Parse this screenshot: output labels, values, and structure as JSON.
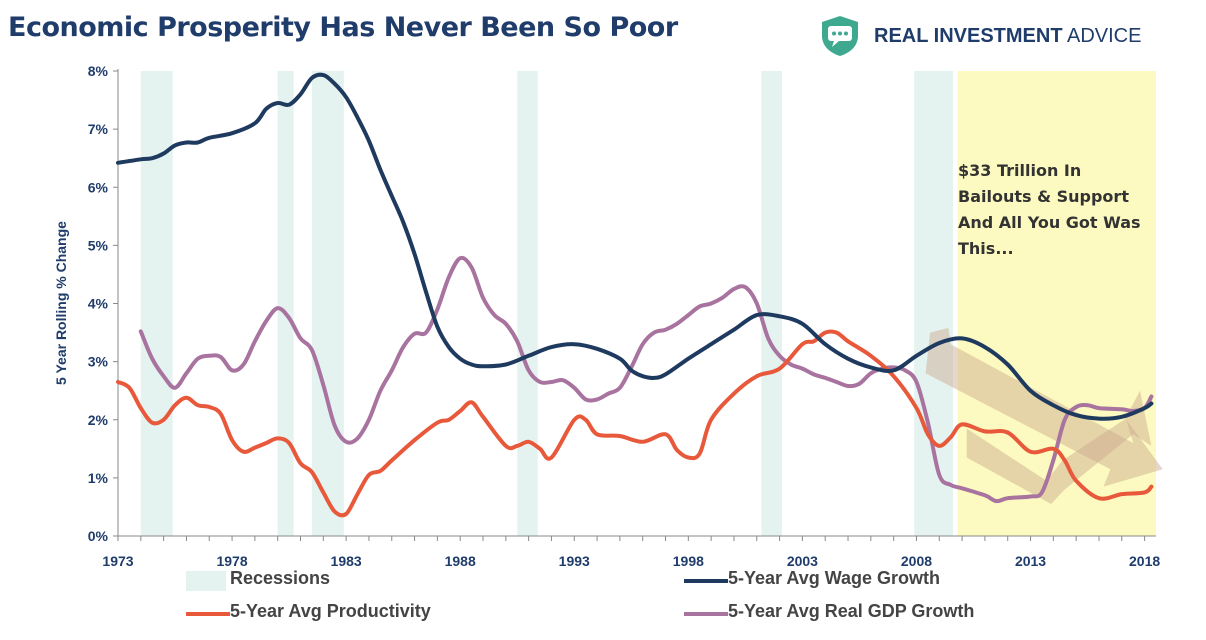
{
  "title": "Economic Prosperity Has Never Been So Poor",
  "brand": {
    "prefix": "REAL INVESTMENT",
    "suffix": "ADVICE",
    "logo_icon": "chat-bubble-shield-icon",
    "logo_color": "#3fa98f"
  },
  "annotation": {
    "lines": [
      "$33 Trillion In",
      "Bailouts & Support",
      "And All You Got Was",
      "This..."
    ]
  },
  "legend": {
    "recessions": "Recessions",
    "wage": "5-Year Avg Wage Growth",
    "productivity": "5-Year Avg Productivity",
    "gdp": "5-Year Avg Real GDP Growth"
  },
  "colors": {
    "wage": "#1f3a5f",
    "productivity": "#e8583a",
    "gdp": "#a8739f",
    "recession": "#e4f3f0",
    "highlight": "#fcfac0",
    "trend_arrow": "#c9a78c"
  },
  "chart_data": {
    "type": "line",
    "title": "Economic Prosperity Has Never Been So Poor",
    "xlabel": "",
    "ylabel": "5 Year Rolling % Change",
    "xlim": [
      1973,
      2018.5
    ],
    "ylim": [
      0,
      8
    ],
    "x_ticks": [
      1973,
      1978,
      1983,
      1988,
      1993,
      1998,
      2003,
      2008,
      2013,
      2018
    ],
    "x_tick_labels": [
      "1973",
      "1978",
      "1983",
      "1988",
      "1993",
      "1998",
      "2003",
      "2008",
      "2013",
      "2018"
    ],
    "y_ticks": [
      0,
      1,
      2,
      3,
      4,
      5,
      6,
      7,
      8
    ],
    "y_tick_labels": [
      "0%",
      "1%",
      "2%",
      "3%",
      "4%",
      "5%",
      "6%",
      "7%",
      "8%"
    ],
    "grid": false,
    "legend_position": "bottom",
    "recessions": [
      [
        1974.0,
        1975.4
      ],
      [
        1980.0,
        1980.7
      ],
      [
        1981.5,
        1982.9
      ],
      [
        1990.5,
        1991.4
      ],
      [
        2001.2,
        2002.1
      ],
      [
        2007.9,
        2009.6
      ]
    ],
    "highlight_range": [
      2009.8,
      2018.5
    ],
    "series": [
      {
        "name": "5-Year Avg Wage Growth",
        "x": [
          1973,
          1974,
          1974.5,
          1975,
          1975.5,
          1976,
          1976.5,
          1977,
          1978,
          1979,
          1979.5,
          1980,
          1980.5,
          1981,
          1981.5,
          1982,
          1982.5,
          1983,
          1983.5,
          1984,
          1984.5,
          1985,
          1985.5,
          1986,
          1986.5,
          1987,
          1987.5,
          1988,
          1988.5,
          1989,
          1990,
          1991,
          1992,
          1993,
          1994,
          1995,
          1995.5,
          1996,
          1996.5,
          1997,
          1998,
          1999,
          2000,
          2001,
          2002,
          2003,
          2004,
          2005,
          2006,
          2007,
          2008,
          2009,
          2010,
          2011,
          2012,
          2013,
          2014,
          2015,
          2016,
          2017,
          2018,
          2018.3
        ],
        "y": [
          6.42,
          6.48,
          6.5,
          6.58,
          6.72,
          6.77,
          6.77,
          6.85,
          6.93,
          7.1,
          7.35,
          7.45,
          7.42,
          7.6,
          7.88,
          7.93,
          7.78,
          7.55,
          7.2,
          6.8,
          6.3,
          5.85,
          5.4,
          4.85,
          4.2,
          3.6,
          3.25,
          3.05,
          2.95,
          2.92,
          2.95,
          3.1,
          3.25,
          3.3,
          3.22,
          3.05,
          2.85,
          2.75,
          2.72,
          2.78,
          3.05,
          3.3,
          3.55,
          3.8,
          3.78,
          3.65,
          3.3,
          3.05,
          2.9,
          2.85,
          3.1,
          3.32,
          3.4,
          3.25,
          2.95,
          2.5,
          2.25,
          2.08,
          2.02,
          2.05,
          2.2,
          2.28
        ]
      },
      {
        "name": "5-Year Avg Productivity",
        "x": [
          1973,
          1973.5,
          1974,
          1974.5,
          1975,
          1975.5,
          1976,
          1976.5,
          1977,
          1977.5,
          1978,
          1978.5,
          1979,
          1979.5,
          1980,
          1980.5,
          1981,
          1981.5,
          1982,
          1982.5,
          1983,
          1983.5,
          1984,
          1984.5,
          1985,
          1986,
          1987,
          1987.5,
          1988,
          1988.5,
          1989,
          1990,
          1990.5,
          1991,
          1991.5,
          1992,
          1993,
          1993.5,
          1994,
          1995,
          1996,
          1997,
          1997.5,
          1998,
          1998.5,
          1999,
          2000,
          2001,
          2002,
          2003,
          2003.5,
          2004,
          2004.5,
          2005,
          2006,
          2007,
          2008,
          2008.5,
          2009,
          2009.5,
          2010,
          2011,
          2012,
          2013,
          2014,
          2014.5,
          2015,
          2016,
          2017,
          2018,
          2018.3
        ],
        "y": [
          2.65,
          2.55,
          2.2,
          1.95,
          2.0,
          2.25,
          2.38,
          2.25,
          2.22,
          2.1,
          1.65,
          1.45,
          1.52,
          1.6,
          1.68,
          1.6,
          1.25,
          1.1,
          0.75,
          0.42,
          0.38,
          0.72,
          1.05,
          1.12,
          1.3,
          1.65,
          1.95,
          2.0,
          2.15,
          2.3,
          2.05,
          1.55,
          1.55,
          1.62,
          1.5,
          1.35,
          2.0,
          2.0,
          1.75,
          1.72,
          1.62,
          1.75,
          1.48,
          1.35,
          1.42,
          2.0,
          2.45,
          2.75,
          2.88,
          3.3,
          3.35,
          3.5,
          3.5,
          3.35,
          3.1,
          2.75,
          2.2,
          1.75,
          1.55,
          1.7,
          1.92,
          1.8,
          1.78,
          1.45,
          1.5,
          1.3,
          0.95,
          0.65,
          0.72,
          0.75,
          0.85
        ]
      },
      {
        "name": "5-Year Avg Real GDP Growth",
        "x": [
          1974,
          1974.5,
          1975,
          1975.5,
          1976,
          1976.5,
          1977,
          1977.5,
          1978,
          1978.5,
          1979,
          1979.5,
          1980,
          1980.5,
          1981,
          1981.5,
          1982,
          1982.5,
          1983,
          1983.5,
          1984,
          1984.5,
          1985,
          1985.5,
          1986,
          1986.5,
          1987,
          1987.5,
          1988,
          1988.5,
          1989,
          1989.5,
          1990,
          1990.5,
          1991,
          1991.5,
          1992,
          1992.5,
          1993,
          1993.5,
          1994,
          1994.5,
          1995,
          1995.5,
          1996,
          1996.5,
          1997,
          1997.5,
          1998,
          1998.5,
          1999,
          1999.5,
          2000,
          2000.5,
          2001,
          2001.5,
          2002,
          2002.5,
          2003,
          2003.5,
          2004,
          2004.5,
          2005,
          2005.5,
          2006,
          2006.5,
          2007,
          2007.5,
          2008,
          2008.5,
          2009,
          2009.5,
          2010,
          2011,
          2011.5,
          2012,
          2013,
          2013.5,
          2014,
          2014.5,
          2015,
          2015.5,
          2016,
          2017,
          2017.5,
          2018,
          2018.3
        ],
        "y": [
          3.52,
          3.05,
          2.75,
          2.55,
          2.8,
          3.05,
          3.1,
          3.08,
          2.85,
          2.95,
          3.35,
          3.7,
          3.92,
          3.75,
          3.4,
          3.2,
          2.6,
          1.9,
          1.62,
          1.68,
          2.0,
          2.5,
          2.85,
          3.25,
          3.48,
          3.5,
          3.9,
          4.45,
          4.78,
          4.62,
          4.1,
          3.8,
          3.65,
          3.35,
          2.85,
          2.65,
          2.65,
          2.68,
          2.55,
          2.35,
          2.35,
          2.45,
          2.55,
          2.9,
          3.3,
          3.5,
          3.55,
          3.65,
          3.8,
          3.95,
          4.0,
          4.1,
          4.25,
          4.28,
          4.0,
          3.4,
          3.1,
          2.95,
          2.88,
          2.78,
          2.72,
          2.65,
          2.58,
          2.62,
          2.8,
          2.88,
          2.9,
          2.85,
          2.65,
          1.95,
          1.05,
          0.88,
          0.82,
          0.7,
          0.6,
          0.65,
          0.68,
          0.75,
          1.3,
          2.0,
          2.22,
          2.25,
          2.2,
          2.18,
          2.15,
          2.2,
          2.4
        ]
      }
    ]
  }
}
